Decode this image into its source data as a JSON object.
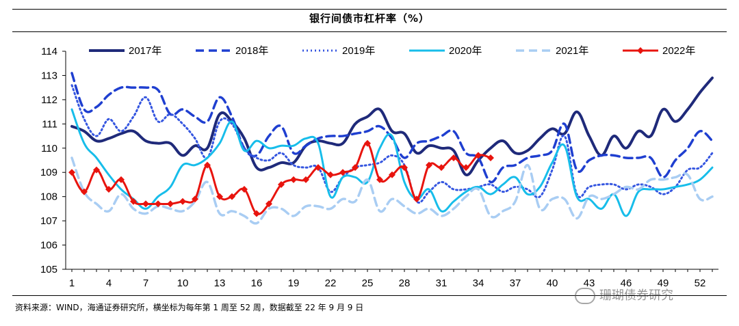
{
  "chart_data": {
    "type": "line",
    "title": "银行间债市杠杆率（%）",
    "xlabel": "",
    "ylabel": "",
    "ylim": [
      105,
      114
    ],
    "xlim": [
      1,
      53
    ],
    "y_ticks": [
      105,
      106,
      107,
      108,
      109,
      110,
      111,
      112,
      113,
      114
    ],
    "x_ticks": [
      1,
      4,
      7,
      10,
      13,
      16,
      19,
      22,
      25,
      28,
      31,
      34,
      37,
      40,
      43,
      46,
      49,
      52
    ],
    "x_tick_labels": [
      "1",
      "4",
      "7",
      "10",
      "13",
      "16",
      "19",
      "22",
      "25",
      "28",
      "31",
      "34",
      "37",
      "40",
      "43",
      "46",
      "49",
      "52"
    ],
    "legend_placement": "top",
    "series": [
      {
        "name": "2017年",
        "color": "#1F2A7A",
        "style": "solid",
        "width": 4,
        "x": [
          1,
          2,
          3,
          4,
          5,
          6,
          7,
          8,
          9,
          10,
          11,
          12,
          13,
          14,
          15,
          16,
          17,
          18,
          19,
          20,
          21,
          22,
          23,
          24,
          25,
          26,
          27,
          28,
          29,
          30,
          31,
          32,
          33,
          34,
          35,
          36,
          37,
          38,
          39,
          40,
          41,
          42,
          43,
          44,
          45,
          46,
          47,
          48,
          49,
          50,
          51,
          52,
          53
        ],
        "values": [
          110.9,
          110.7,
          110.3,
          110.4,
          110.6,
          110.7,
          110.3,
          110.2,
          110.2,
          109.7,
          110.1,
          110.0,
          111.4,
          111.1,
          110.4,
          109.2,
          109.2,
          109.4,
          109.4,
          110.1,
          110.3,
          110.2,
          110.2,
          111.0,
          111.3,
          111.6,
          110.7,
          110.6,
          109.8,
          110.1,
          110.0,
          109.9,
          108.9,
          109.5,
          110.0,
          110.3,
          109.8,
          109.9,
          110.4,
          110.8,
          110.6,
          111.5,
          110.5,
          109.7,
          110.5,
          110.0,
          110.7,
          110.5,
          111.6,
          111.1,
          111.6,
          112.3,
          112.9
        ]
      },
      {
        "name": "2018年",
        "color": "#1F3FD0",
        "style": "dashed",
        "width": 3.5,
        "x": [
          1,
          2,
          3,
          4,
          5,
          6,
          7,
          8,
          9,
          10,
          11,
          12,
          13,
          14,
          15,
          16,
          17,
          18,
          19,
          20,
          21,
          22,
          23,
          24,
          25,
          26,
          27,
          28,
          29,
          30,
          31,
          32,
          33,
          34,
          35,
          36,
          37,
          38,
          39,
          40,
          41,
          42,
          43,
          44,
          45,
          46,
          47,
          48,
          49,
          50,
          51,
          52,
          53
        ],
        "values": [
          113.1,
          111.6,
          111.7,
          112.2,
          112.5,
          112.5,
          112.5,
          112.4,
          111.4,
          111.6,
          111.3,
          111.1,
          112.1,
          111.3,
          110.0,
          109.7,
          110.5,
          110.9,
          109.8,
          110.1,
          110.4,
          110.5,
          110.5,
          110.6,
          110.7,
          110.9,
          110.4,
          109.6,
          110.2,
          110.3,
          110.5,
          110.7,
          109.8,
          109.6,
          108.6,
          109.2,
          109.3,
          109.6,
          109.7,
          109.9,
          111.0,
          109.1,
          109.5,
          109.7,
          109.7,
          109.6,
          109.6,
          109.6,
          108.8,
          109.5,
          110.0,
          110.7,
          110.3
        ]
      },
      {
        "name": "2019年",
        "color": "#3556E0",
        "style": "dotted",
        "width": 3,
        "x": [
          1,
          2,
          3,
          4,
          5,
          6,
          7,
          8,
          9,
          10,
          11,
          12,
          13,
          14,
          15,
          16,
          17,
          18,
          19,
          20,
          21,
          22,
          23,
          24,
          25,
          26,
          27,
          28,
          29,
          30,
          31,
          32,
          33,
          34,
          35,
          36,
          37,
          38,
          39,
          40,
          41,
          42,
          43,
          44,
          45,
          46,
          47,
          48,
          49,
          50,
          51,
          52,
          53
        ],
        "values": [
          112.6,
          111.2,
          110.5,
          111.2,
          110.7,
          111.3,
          112.1,
          111.1,
          111.4,
          111.0,
          110.4,
          109.6,
          111.1,
          111.0,
          110.0,
          109.6,
          109.5,
          109.8,
          109.3,
          109.2,
          109.2,
          108.2,
          108.8,
          109.2,
          109.3,
          109.4,
          109.7,
          109.3,
          107.8,
          108.2,
          108.6,
          108.3,
          108.3,
          108.4,
          108.5,
          108.2,
          108.4,
          108.3,
          108.0,
          109.1,
          110.5,
          108.1,
          108.4,
          108.5,
          108.5,
          108.3,
          108.5,
          108.4,
          108.1,
          108.4,
          109.1,
          109.2,
          109.8
        ]
      },
      {
        "name": "2020年",
        "color": "#17BDEA",
        "style": "solid",
        "width": 3,
        "x": [
          1,
          2,
          3,
          4,
          5,
          6,
          7,
          8,
          9,
          10,
          11,
          12,
          13,
          14,
          15,
          16,
          17,
          18,
          19,
          20,
          21,
          22,
          23,
          24,
          25,
          26,
          27,
          28,
          29,
          30,
          31,
          32,
          33,
          34,
          35,
          36,
          37,
          38,
          39,
          40,
          41,
          42,
          43,
          44,
          45,
          46,
          47,
          48,
          49,
          50,
          51,
          52,
          53
        ],
        "values": [
          111.6,
          110.2,
          109.6,
          108.9,
          108.3,
          107.9,
          107.5,
          108.0,
          108.4,
          109.3,
          109.3,
          109.6,
          110.2,
          111.1,
          109.9,
          110.3,
          110.0,
          110.1,
          110.1,
          110.4,
          110.2,
          108.0,
          108.8,
          108.8,
          108.6,
          110.0,
          110.5,
          108.6,
          107.9,
          108.3,
          107.4,
          107.8,
          108.2,
          108.4,
          108.1,
          108.5,
          108.8,
          108.1,
          108.4,
          109.4,
          110.1,
          108.0,
          107.9,
          107.5,
          108.1,
          107.2,
          108.2,
          108.3,
          108.3,
          108.4,
          108.5,
          108.7,
          109.2
        ]
      },
      {
        "name": "2021年",
        "color": "#A9CDF3",
        "style": "dashed",
        "width": 3.5,
        "x": [
          1,
          2,
          3,
          4,
          5,
          6,
          7,
          8,
          9,
          10,
          11,
          12,
          13,
          14,
          15,
          16,
          17,
          18,
          19,
          20,
          21,
          22,
          23,
          24,
          25,
          26,
          27,
          28,
          29,
          30,
          31,
          32,
          33,
          34,
          35,
          36,
          37,
          38,
          39,
          40,
          41,
          42,
          43,
          44,
          45,
          46,
          47,
          48,
          49,
          50,
          51,
          52,
          53
        ],
        "values": [
          109.6,
          108.2,
          107.7,
          107.4,
          108.1,
          107.5,
          107.3,
          107.6,
          107.5,
          107.4,
          107.8,
          108.6,
          107.3,
          107.4,
          107.2,
          106.9,
          107.5,
          107.5,
          107.2,
          107.6,
          107.6,
          107.5,
          107.9,
          107.8,
          108.7,
          107.4,
          107.9,
          107.6,
          107.3,
          107.5,
          107.2,
          107.5,
          108.0,
          108.3,
          107.2,
          107.4,
          107.8,
          109.3,
          107.5,
          107.9,
          107.9,
          107.1,
          108.0,
          107.9,
          108.1,
          108.4,
          108.3,
          108.7,
          108.7,
          108.8,
          108.9,
          107.9,
          108.0
        ]
      },
      {
        "name": "2022年",
        "color": "#E8140E",
        "style": "solid-diamond",
        "width": 3,
        "x": [
          1,
          2,
          3,
          4,
          5,
          6,
          7,
          8,
          9,
          10,
          11,
          12,
          13,
          14,
          15,
          16,
          17,
          18,
          19,
          20,
          21,
          22,
          23,
          24,
          25,
          26,
          27,
          28,
          29,
          30,
          31,
          32,
          33,
          34,
          35
        ],
        "values": [
          109.0,
          108.2,
          109.1,
          108.3,
          108.7,
          107.8,
          107.7,
          107.7,
          107.7,
          107.8,
          107.9,
          109.3,
          108.0,
          108.0,
          108.3,
          107.3,
          107.7,
          108.5,
          108.7,
          108.7,
          109.2,
          108.9,
          109.0,
          109.2,
          110.2,
          108.7,
          108.9,
          109.2,
          107.9,
          109.3,
          109.2,
          109.6,
          109.2,
          109.7,
          109.6
        ]
      }
    ]
  },
  "source_note": "资料来源：WIND，海通证券研究所，横坐标为每年第 1 周至 52 周，数据截至 22 年 9 月 9 日",
  "watermark": "珊瑚债券研究"
}
